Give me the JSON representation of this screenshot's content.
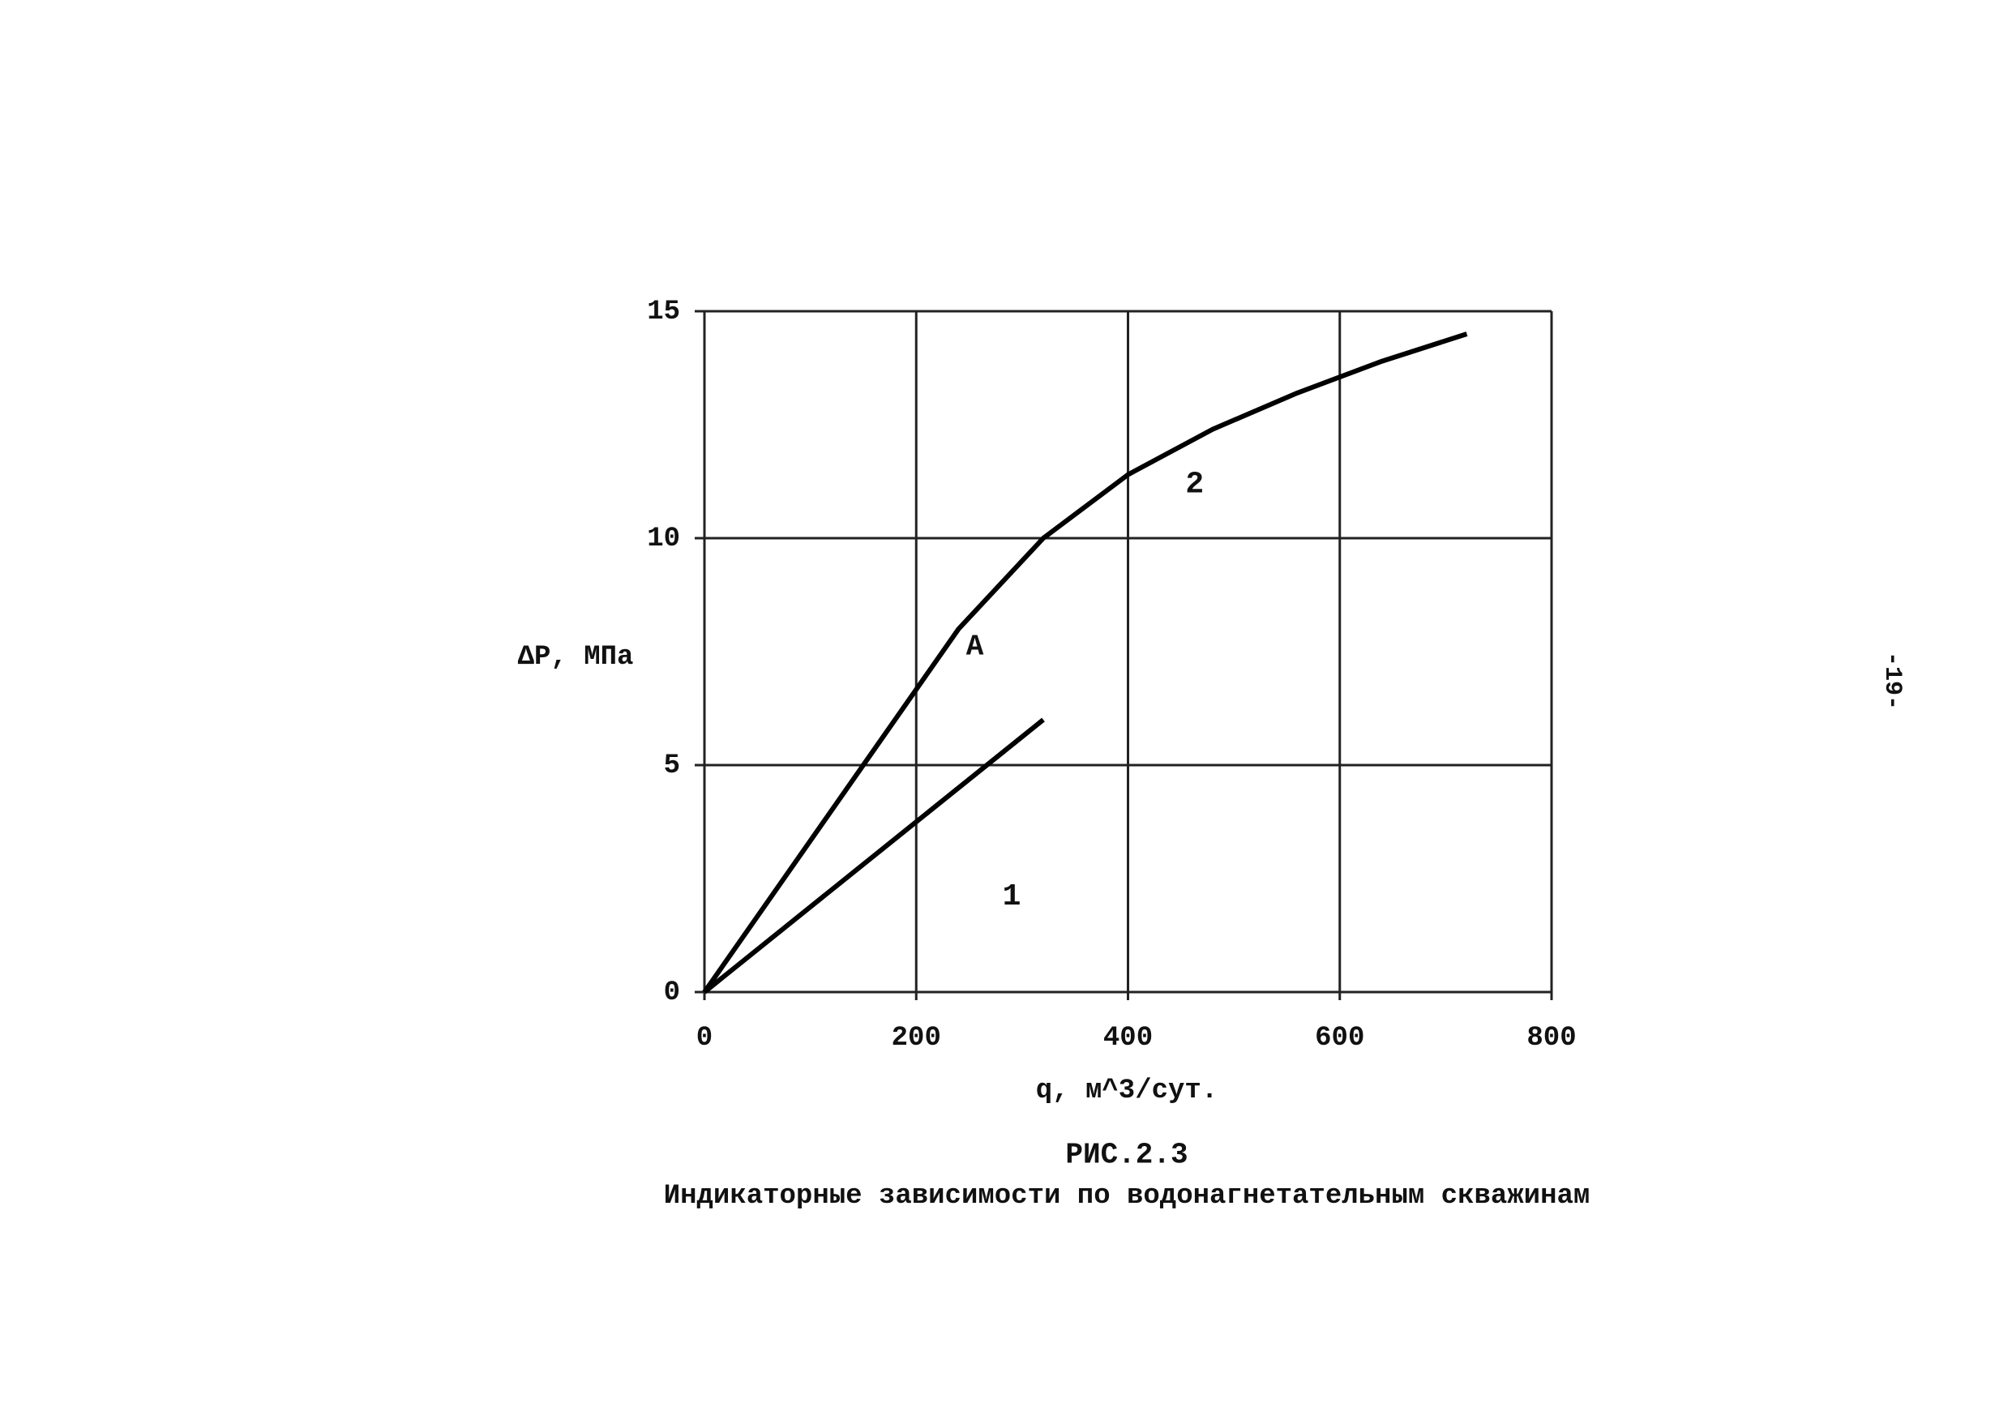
{
  "chart_data": {
    "type": "line",
    "title": "РИС.2.3",
    "subtitle": "Индикаторные зависимости по водонагнетательным скважинам",
    "x_label": "q, м^3/сут.",
    "y_label": "ΔP, МПа",
    "xlim": [
      0,
      800
    ],
    "xticks": [
      0,
      200,
      400,
      600,
      800
    ],
    "ylim": [
      0,
      15
    ],
    "yticks": [
      0,
      5,
      10,
      15
    ],
    "grid": true,
    "series": [
      {
        "name": "1",
        "color": "#000000",
        "x": [
          0,
          320
        ],
        "values": [
          0,
          6
        ]
      },
      {
        "name": "2",
        "color": "#000000",
        "x": [
          0,
          150,
          240,
          320,
          400,
          480,
          560,
          640,
          720
        ],
        "values": [
          0,
          5,
          8,
          10,
          11.4,
          12.4,
          13.2,
          13.9,
          14.5
        ]
      }
    ],
    "annotations": [
      {
        "text": "A"
      }
    ]
  },
  "page_number": "-19-"
}
